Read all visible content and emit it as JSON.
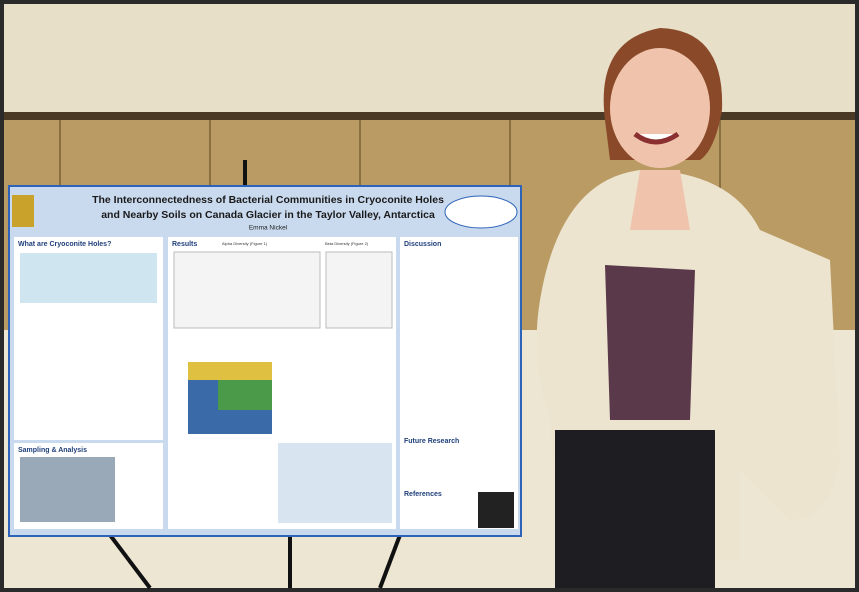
{
  "poster": {
    "title_lines": [
      "The Interconnectedness of Bacterial Communities in Cryoconite Holes",
      "and Nearby Soils on Canada Glacier in the Taylor Valley, Antarctica"
    ],
    "author": "Emma Nickel",
    "sections": {
      "intro": "What are Cryoconite Holes?",
      "sampling": "Sampling & Analysis",
      "results": "Results",
      "alpha": "Alpha Diversity (Figure 1)",
      "beta": "Beta Diversity (Figure 2)",
      "discussion": "Discussion",
      "future": "Future Research",
      "references": "References"
    }
  }
}
